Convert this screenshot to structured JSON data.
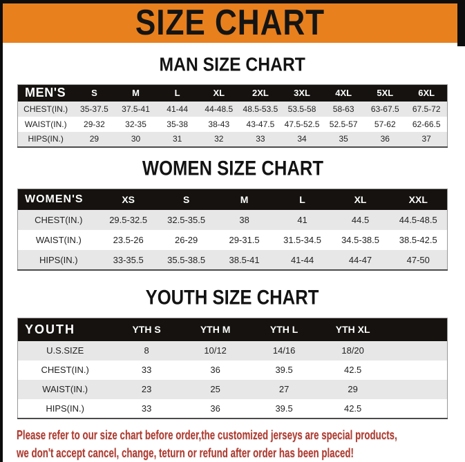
{
  "banner": {
    "title": "SIZE CHART"
  },
  "sections": [
    {
      "heading": "MAN SIZE CHART",
      "table": {
        "label": "MEN'S",
        "columns": [
          "S",
          "M",
          "L",
          "XL",
          "2XL",
          "3XL",
          "4XL",
          "5XL",
          "6XL"
        ],
        "rows": [
          {
            "label": "CHEST(IN.)",
            "values": [
              "35-37.5",
              "37.5-41",
              "41-44",
              "44-48.5",
              "48.5-53.5",
              "53.5-58",
              "58-63",
              "63-67.5",
              "67.5-72"
            ]
          },
          {
            "label": "WAIST(IN.)",
            "values": [
              "29-32",
              "32-35",
              "35-38",
              "38-43",
              "43-47.5",
              "47.5-52.5",
              "52.5-57",
              "57-62",
              "62-66.5"
            ]
          },
          {
            "label": "HIPS(IN.)",
            "values": [
              "29",
              "30",
              "31",
              "32",
              "33",
              "34",
              "35",
              "36",
              "37"
            ]
          }
        ]
      }
    },
    {
      "heading": "WOMEN SIZE CHART",
      "table": {
        "label": "WOMEN'S",
        "columns": [
          "XS",
          "S",
          "M",
          "L",
          "XL",
          "XXL"
        ],
        "rows": [
          {
            "label": "CHEST(IN.)",
            "values": [
              "29.5-32.5",
              "32.5-35.5",
              "38",
              "41",
              "44.5",
              "44.5-48.5"
            ]
          },
          {
            "label": "WAIST(IN.)",
            "values": [
              "23.5-26",
              "26-29",
              "29-31.5",
              "31.5-34.5",
              "34.5-38.5",
              "38.5-42.5"
            ]
          },
          {
            "label": "HIPS(IN.)",
            "values": [
              "33-35.5",
              "35.5-38.5",
              "38.5-41",
              "41-44",
              "44-47",
              "47-50"
            ]
          }
        ]
      }
    },
    {
      "heading": "YOUTH SIZE CHART",
      "table": {
        "label": "YOUTH",
        "columns": [
          "YTH S",
          "YTH M",
          "YTH L",
          "YTH XL"
        ],
        "rows": [
          {
            "label": "U.S.SIZE",
            "values": [
              "8",
              "10/12",
              "14/16",
              "18/20"
            ]
          },
          {
            "label": "CHEST(IN.)",
            "values": [
              "33",
              "36",
              "39.5",
              "42.5"
            ]
          },
          {
            "label": "WAIST(IN.)",
            "values": [
              "23",
              "25",
              "27",
              "29"
            ]
          },
          {
            "label": "HIPS(IN.)",
            "values": [
              "33",
              "36",
              "39.5",
              "42.5"
            ]
          }
        ]
      }
    }
  ],
  "footer": {
    "line1": "Please refer to our size chart before order,the customized jerseys are special products,",
    "line2": "we don't accept cancel, change, teturn or refund after order has been placed!"
  },
  "colors": {
    "banner_orange": "#E8801E",
    "table_header_black": "#15120F",
    "row_stripe_gray": "#E7E7E7",
    "footer_red": "#B2392E"
  }
}
